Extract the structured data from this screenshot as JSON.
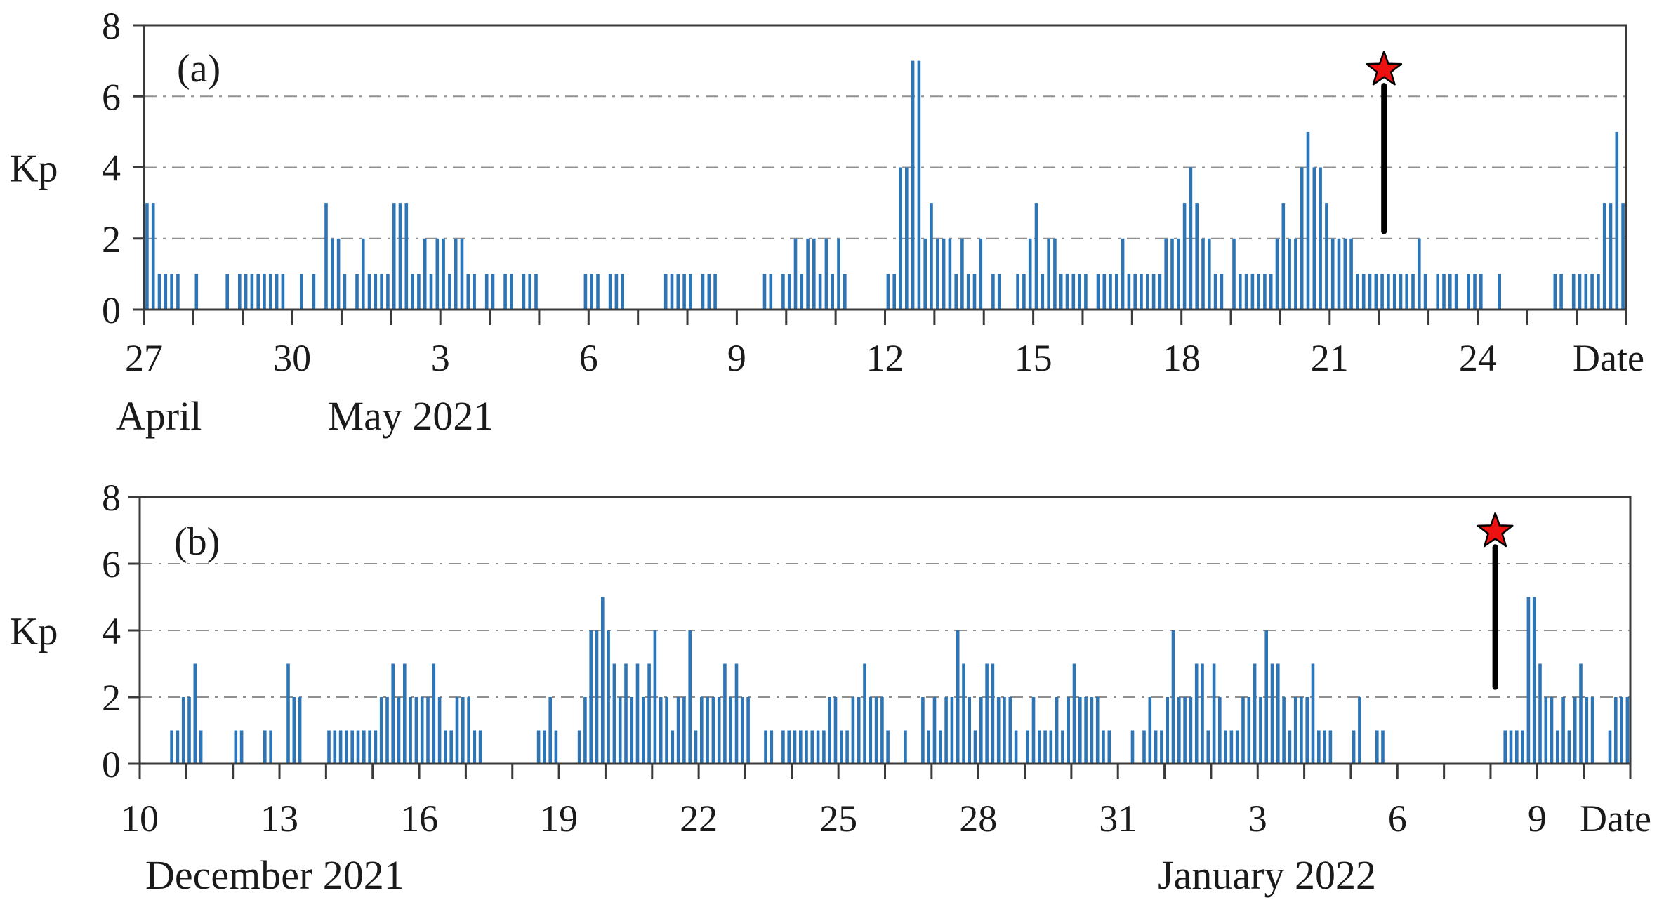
{
  "page": {
    "background": "#ffffff"
  },
  "chart_data": [
    {
      "type": "bar",
      "panel_label": "(a)",
      "ylabel": "Kp",
      "date_axis_label": "Date",
      "ylim": [
        0,
        8
      ],
      "yticks": [
        8,
        6,
        4,
        2,
        0
      ],
      "gridlines_kp": [
        2,
        4,
        6
      ],
      "grid_style": "dash-dot",
      "legend": "none",
      "bar_color": "#2E75B6",
      "axis_color": "#3a3a3a",
      "grid_color": "#909090",
      "days": 30,
      "slots_per_day": 8,
      "xtick_labels": [
        "27",
        "30",
        "3",
        "6",
        "9",
        "12",
        "15",
        "18",
        "21",
        "24"
      ],
      "xtick_day_index": [
        0,
        3,
        6,
        9,
        12,
        15,
        18,
        21,
        24,
        27
      ],
      "month_labels": [
        {
          "text": "April",
          "day_center": 0.3
        },
        {
          "text": "May 2021",
          "day_center": 5.4
        }
      ],
      "kp_by_day": [
        [
          3,
          3,
          1,
          1,
          1,
          1,
          0,
          0
        ],
        [
          1,
          0,
          0,
          0,
          0,
          1,
          0,
          1
        ],
        [
          1,
          1,
          1,
          1,
          1,
          1,
          1,
          0
        ],
        [
          0,
          1,
          0,
          1,
          0,
          3,
          2,
          2
        ],
        [
          1,
          0,
          1,
          2,
          1,
          1,
          1,
          1
        ],
        [
          3,
          3,
          3,
          1,
          1,
          2,
          1,
          2
        ],
        [
          2,
          1,
          2,
          2,
          1,
          1,
          0,
          1
        ],
        [
          1,
          0,
          1,
          1,
          0,
          1,
          1,
          1
        ],
        [
          0,
          0,
          0,
          0,
          0,
          0,
          0,
          1
        ],
        [
          1,
          1,
          0,
          1,
          1,
          1,
          0,
          0
        ],
        [
          0,
          0,
          0,
          0,
          1,
          1,
          1,
          1
        ],
        [
          1,
          0,
          1,
          1,
          1,
          0,
          0,
          0
        ],
        [
          0,
          0,
          0,
          0,
          1,
          1,
          0,
          1
        ],
        [
          1,
          2,
          1,
          2,
          2,
          1,
          2,
          1
        ],
        [
          2,
          1,
          0,
          0,
          0,
          0,
          0,
          0
        ],
        [
          1,
          1,
          4,
          4,
          7,
          7,
          2,
          3
        ],
        [
          2,
          2,
          2,
          1,
          2,
          1,
          1,
          2
        ],
        [
          0,
          1,
          1,
          0,
          0,
          1,
          1,
          2
        ],
        [
          3,
          1,
          2,
          2,
          1,
          1,
          1,
          1
        ],
        [
          1,
          0,
          1,
          1,
          1,
          1,
          2,
          1
        ],
        [
          1,
          1,
          1,
          1,
          1,
          2,
          2,
          2
        ],
        [
          3,
          4,
          3,
          2,
          2,
          1,
          1,
          0
        ],
        [
          2,
          1,
          1,
          1,
          1,
          1,
          1,
          2
        ],
        [
          3,
          2,
          2,
          4,
          5,
          4,
          4,
          3
        ],
        [
          2,
          2,
          2,
          2,
          1,
          1,
          1,
          1
        ],
        [
          1,
          1,
          1,
          1,
          1,
          1,
          2,
          1
        ],
        [
          0,
          1,
          1,
          1,
          1,
          0,
          1,
          1
        ],
        [
          1,
          0,
          0,
          1,
          0,
          0,
          0,
          0
        ],
        [
          0,
          0,
          0,
          0,
          1,
          1,
          0,
          1
        ],
        [
          1,
          1,
          1,
          1,
          3,
          3,
          5,
          3
        ]
      ],
      "event_marker": {
        "day": 25.1,
        "star_kp": 6.75,
        "line_top_kp": 6.3,
        "line_bottom_kp": 2.2,
        "star_color": "#EE1111",
        "line_color": "#000000"
      }
    },
    {
      "type": "bar",
      "panel_label": "(b)",
      "ylabel": "Kp",
      "date_axis_label": "Date",
      "ylim": [
        0,
        8
      ],
      "yticks": [
        8,
        6,
        4,
        2,
        0
      ],
      "gridlines_kp": [
        2,
        4,
        6
      ],
      "grid_style": "dash-dot",
      "legend": "none",
      "bar_color": "#2E75B6",
      "axis_color": "#3a3a3a",
      "grid_color": "#909090",
      "days": 32,
      "slots_per_day": 8,
      "xtick_labels": [
        "10",
        "13",
        "16",
        "19",
        "22",
        "25",
        "28",
        "31",
        "3",
        "6",
        "9"
      ],
      "xtick_day_index": [
        0,
        3,
        6,
        9,
        12,
        15,
        18,
        21,
        24,
        27,
        30
      ],
      "month_labels": [
        {
          "text": "December 2021",
          "day_center": 2.9
        },
        {
          "text": "January 2022",
          "day_center": 24.2
        }
      ],
      "kp_by_day": [
        [
          0,
          0,
          0,
          0,
          0,
          1,
          1,
          2
        ],
        [
          2,
          3,
          1,
          0,
          0,
          0,
          0,
          0
        ],
        [
          1,
          1,
          0,
          0,
          0,
          1,
          1,
          0
        ],
        [
          0,
          3,
          2,
          2,
          0,
          0,
          0,
          0
        ],
        [
          1,
          1,
          1,
          1,
          1,
          1,
          1,
          1
        ],
        [
          1,
          2,
          2,
          3,
          2,
          3,
          2,
          2
        ],
        [
          2,
          2,
          3,
          2,
          1,
          1,
          2,
          2
        ],
        [
          2,
          1,
          1,
          0,
          0,
          0,
          0,
          0
        ],
        [
          0,
          0,
          0,
          0,
          1,
          1,
          2,
          1
        ],
        [
          0,
          0,
          0,
          1,
          2,
          4,
          4,
          5
        ],
        [
          4,
          3,
          2,
          3,
          2,
          3,
          2,
          3
        ],
        [
          4,
          2,
          2,
          1,
          2,
          2,
          4,
          1
        ],
        [
          2,
          2,
          2,
          2,
          3,
          2,
          3,
          2
        ],
        [
          2,
          0,
          0,
          1,
          1,
          0,
          1,
          1
        ],
        [
          1,
          1,
          1,
          1,
          1,
          1,
          2,
          2
        ],
        [
          1,
          1,
          2,
          2,
          3,
          2,
          2,
          2
        ],
        [
          1,
          0,
          0,
          1,
          0,
          0,
          2,
          1
        ],
        [
          2,
          1,
          2,
          2,
          4,
          3,
          2,
          1
        ],
        [
          2,
          3,
          3,
          2,
          2,
          2,
          1,
          0
        ],
        [
          1,
          2,
          1,
          1,
          1,
          2,
          1,
          2
        ],
        [
          3,
          2,
          2,
          2,
          2,
          1,
          1,
          0
        ],
        [
          0,
          0,
          1,
          0,
          1,
          2,
          1,
          1
        ],
        [
          2,
          4,
          2,
          2,
          2,
          3,
          3,
          1
        ],
        [
          3,
          2,
          1,
          1,
          1,
          2,
          2,
          3
        ],
        [
          2,
          4,
          3,
          3,
          2,
          1,
          2,
          2
        ],
        [
          2,
          3,
          1,
          1,
          1,
          0,
          0,
          0
        ],
        [
          1,
          2,
          0,
          0,
          1,
          1,
          0,
          0
        ],
        [
          0,
          0,
          0,
          0,
          0,
          0,
          0,
          0
        ],
        [
          0,
          0,
          0,
          0,
          0,
          0,
          0,
          0
        ],
        [
          0,
          0,
          1,
          1,
          1,
          1,
          5,
          5
        ],
        [
          3,
          2,
          2,
          1,
          2,
          1,
          2,
          3
        ],
        [
          2,
          2,
          0,
          0,
          1,
          2,
          2,
          2
        ]
      ],
      "event_marker": {
        "day": 29.1,
        "star_kp": 6.97,
        "line_top_kp": 6.5,
        "line_bottom_kp": 2.3,
        "star_color": "#EE1111",
        "line_color": "#000000"
      }
    }
  ]
}
